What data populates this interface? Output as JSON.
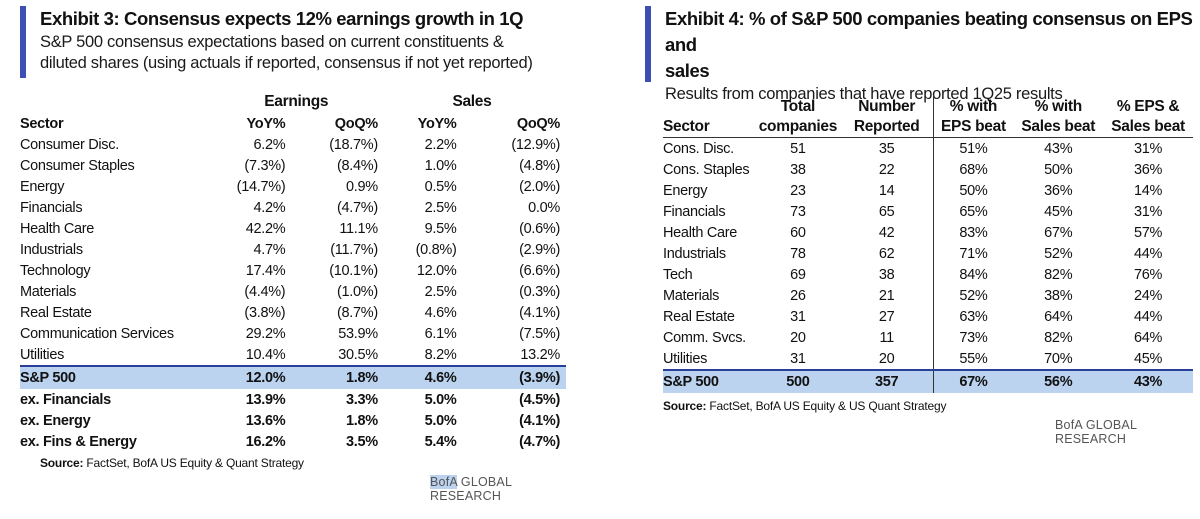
{
  "exhibit3": {
    "title": "Exhibit 3: Consensus expects 12% earnings growth in 1Q",
    "subtitle_line1": "S&P 500 consensus expectations based on current constituents &",
    "subtitle_line2": "diluted shares (using actuals if reported, consensus if not yet reported)",
    "group_headers": {
      "earnings": "Earnings",
      "sales": "Sales"
    },
    "columns": [
      "Sector",
      "YoY%",
      "QoQ%",
      "YoY%",
      "QoQ%"
    ],
    "rows": [
      [
        "Consumer Disc.",
        "6.2%",
        "(18.7%)",
        "2.2%",
        "(12.9%)"
      ],
      [
        "Consumer Staples",
        "(7.3%)",
        "(8.4%)",
        "1.0%",
        "(4.8%)"
      ],
      [
        "Energy",
        "(14.7%)",
        "0.9%",
        "0.5%",
        "(2.0%)"
      ],
      [
        "Financials",
        "4.2%",
        "(4.7%)",
        "2.5%",
        "0.0%"
      ],
      [
        "Health Care",
        "42.2%",
        "11.1%",
        "9.5%",
        "(0.6%)"
      ],
      [
        "Industrials",
        "4.7%",
        "(11.7%)",
        "(0.8%)",
        "(2.9%)"
      ],
      [
        "Technology",
        "17.4%",
        "(10.1%)",
        "12.0%",
        "(6.6%)"
      ],
      [
        "Materials",
        "(4.4%)",
        "(1.0%)",
        "2.5%",
        "(0.3%)"
      ],
      [
        "Real Estate",
        "(3.8%)",
        "(8.7%)",
        "4.6%",
        "(4.1%)"
      ],
      [
        "Communication Services",
        "29.2%",
        "53.9%",
        "6.1%",
        "(7.5%)"
      ],
      [
        "Utilities",
        "10.4%",
        "30.5%",
        "8.2%",
        "13.2%"
      ]
    ],
    "total": [
      "S&P 500",
      "12.0%",
      "1.8%",
      "4.6%",
      "(3.9%)"
    ],
    "extra_rows": [
      [
        "ex. Financials",
        "13.9%",
        "3.3%",
        "5.0%",
        "(4.5%)"
      ],
      [
        "ex. Energy",
        "13.6%",
        "1.8%",
        "5.0%",
        "(4.1%)"
      ],
      [
        "ex. Fins & Energy",
        "16.2%",
        "3.5%",
        "5.4%",
        "(4.7%)"
      ]
    ],
    "source_label": "Source:",
    "source_text": " FactSet, BofA US Equity & Quant Strategy",
    "brand_bofa": "BofA",
    "brand_rest": " GLOBAL RESEARCH",
    "accent_color": "#3d4fb4",
    "highlight_color": "#bcd3f0"
  },
  "exhibit4": {
    "title_line1": "Exhibit 4: % of S&P 500 companies beating consensus on EPS and",
    "title_line2": "sales",
    "subtitle": "Results from companies that have reported 1Q25 results",
    "columns": [
      {
        "line1": "",
        "line2": "Sector"
      },
      {
        "line1": "Total",
        "line2": "companies"
      },
      {
        "line1": "Number",
        "line2": "Reported"
      },
      {
        "line1": "% with",
        "line2": "EPS beat"
      },
      {
        "line1": "% with",
        "line2": "Sales beat"
      },
      {
        "line1": "% EPS &",
        "line2": "Sales beat"
      }
    ],
    "rows": [
      [
        "Cons. Disc.",
        "51",
        "35",
        "51%",
        "43%",
        "31%"
      ],
      [
        "Cons. Staples",
        "38",
        "22",
        "68%",
        "50%",
        "36%"
      ],
      [
        "Energy",
        "23",
        "14",
        "50%",
        "36%",
        "14%"
      ],
      [
        "Financials",
        "73",
        "65",
        "65%",
        "45%",
        "31%"
      ],
      [
        "Health Care",
        "60",
        "42",
        "83%",
        "67%",
        "57%"
      ],
      [
        "Industrials",
        "78",
        "62",
        "71%",
        "52%",
        "44%"
      ],
      [
        "Tech",
        "69",
        "38",
        "84%",
        "82%",
        "76%"
      ],
      [
        "Materials",
        "26",
        "21",
        "52%",
        "38%",
        "24%"
      ],
      [
        "Real Estate",
        "31",
        "27",
        "63%",
        "64%",
        "44%"
      ],
      [
        "Comm. Svcs.",
        "20",
        "11",
        "73%",
        "82%",
        "64%"
      ],
      [
        "Utilities",
        "31",
        "20",
        "55%",
        "70%",
        "45%"
      ]
    ],
    "total": [
      "S&P 500",
      "500",
      "357",
      "67%",
      "56%",
      "43%"
    ],
    "source_label": "Source:",
    "source_text": " FactSet, BofA US Equity & US Quant Strategy",
    "brand": "BofA GLOBAL RESEARCH"
  }
}
